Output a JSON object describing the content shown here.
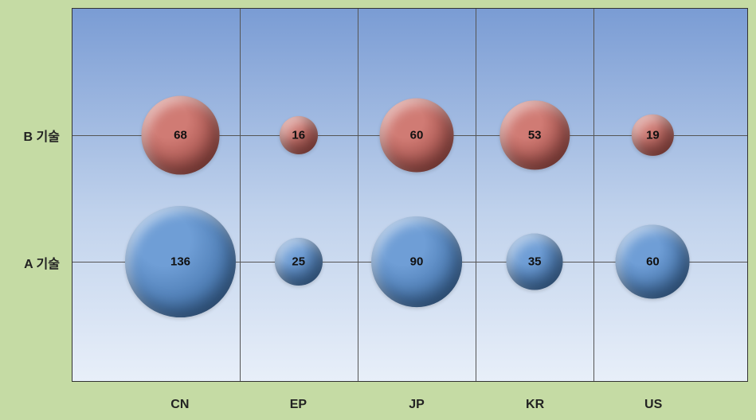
{
  "chart": {
    "type": "bubble",
    "outer_background": "#c5dba4",
    "plot_background_gradient": [
      "#7a9cd4",
      "#c0d2ec",
      "#e8eff9"
    ],
    "grid_color": "#555555",
    "label_color": "#222222",
    "label_fontsize": 16,
    "value_fontsize": 15,
    "x_axis": {
      "categories": [
        "CN",
        "EP",
        "JP",
        "KR",
        "US"
      ],
      "positions_pct": [
        16,
        33.5,
        51,
        68.5,
        86
      ]
    },
    "y_axis": {
      "categories": [
        "B 기술",
        "A 기술"
      ],
      "positions_pct": [
        34,
        68
      ]
    },
    "bubble_radius_scale": 6.0,
    "series": [
      {
        "name": "A 기술",
        "y_index": 1,
        "fill_top": "#6f9ed6",
        "fill_bottom": "#2b5b92",
        "values": [
          136,
          25,
          90,
          35,
          60
        ]
      },
      {
        "name": "B 기술",
        "y_index": 0,
        "fill_top": "#d07b74",
        "fill_bottom": "#8e3a35",
        "values": [
          68,
          16,
          60,
          53,
          19
        ]
      }
    ]
  }
}
